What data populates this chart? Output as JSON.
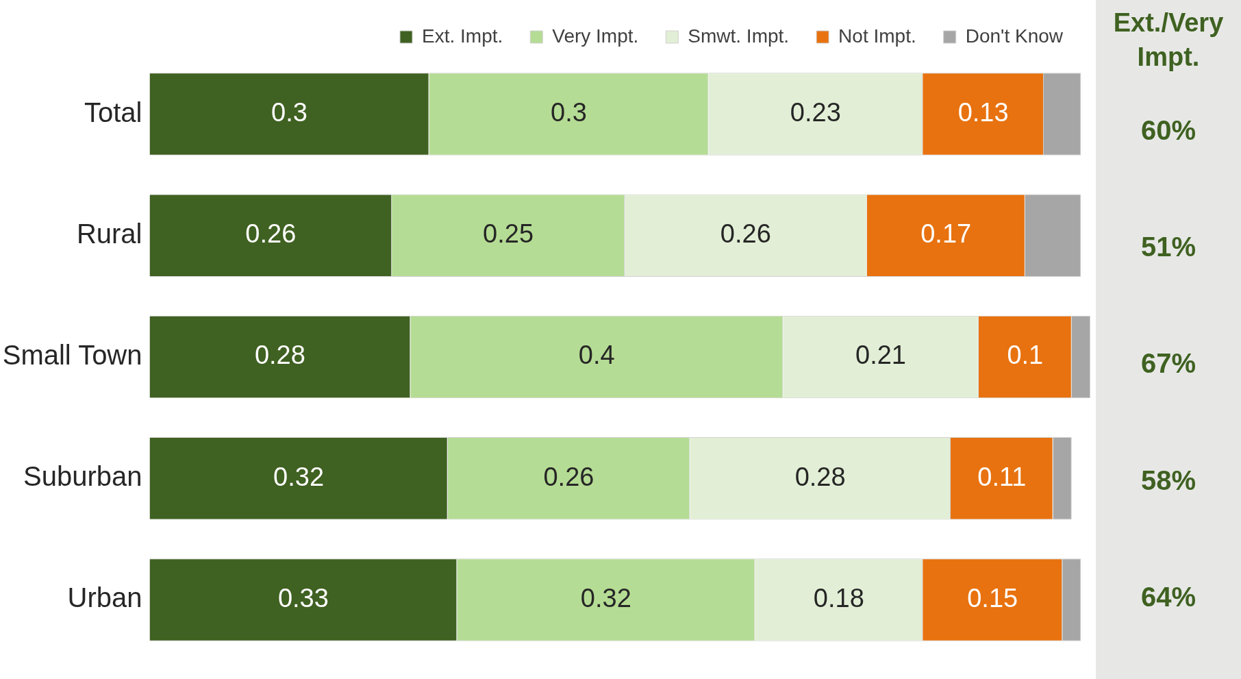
{
  "chart_data": {
    "type": "bar",
    "orientation": "horizontal",
    "stacked": true,
    "legend": "top right",
    "categories": [
      "Total",
      "Rural",
      "Small Town",
      "Suburban",
      "Urban"
    ],
    "series": [
      {
        "name": "Ext. Impt.",
        "color": "#3f6121",
        "values": [
          0.3,
          0.26,
          0.28,
          0.32,
          0.33
        ],
        "value_labels": [
          "0.3",
          "0.26",
          "0.28",
          "0.32",
          "0.33"
        ]
      },
      {
        "name": "Very Impt.",
        "color": "#b5dc94",
        "values": [
          0.3,
          0.25,
          0.4,
          0.26,
          0.32
        ],
        "value_labels": [
          "0.3",
          "0.25",
          "0.4",
          "0.26",
          "0.32"
        ]
      },
      {
        "name": "Smwt. Impt.",
        "color": "#e2efd6",
        "values": [
          0.23,
          0.26,
          0.21,
          0.28,
          0.18
        ],
        "value_labels": [
          "0.23",
          "0.26",
          "0.21",
          "0.28",
          "0.18"
        ]
      },
      {
        "name": "Not Impt.",
        "color": "#e8720f",
        "values": [
          0.13,
          0.17,
          0.1,
          0.11,
          0.15
        ],
        "value_labels": [
          "0.13",
          "0.17",
          "0.1",
          "0.11",
          "0.15"
        ]
      },
      {
        "name": "Don't Know",
        "color": "#a6a6a6",
        "values": [
          0.04,
          0.06,
          0.02,
          0.02,
          0.02
        ],
        "value_labels": [
          null,
          null,
          null,
          null,
          null
        ]
      }
    ],
    "annotations": [
      "Ext./Very Impt.",
      "60%",
      "51%",
      "67%",
      "58%",
      "64%"
    ]
  }
}
